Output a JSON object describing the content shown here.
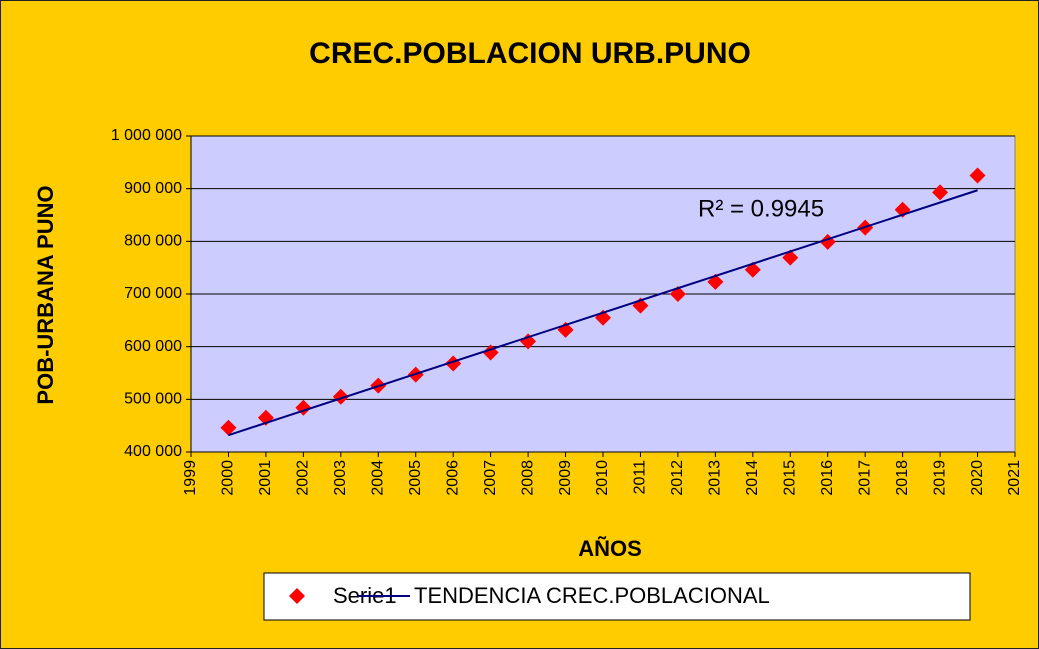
{
  "chart_data": {
    "type": "scatter",
    "title": "CREC.POBLACION URB.PUNO",
    "x_label": "AÑOS",
    "y_label": "POB-URBANA PUNO",
    "annotation": "R² = 0.9945",
    "x": [
      2000,
      2001,
      2002,
      2003,
      2004,
      2005,
      2006,
      2007,
      2008,
      2009,
      2010,
      2011,
      2012,
      2013,
      2014,
      2015,
      2016,
      2017,
      2018,
      2019,
      2020
    ],
    "series": [
      {
        "name": "Serie1",
        "color": "#ff0000",
        "values": [
          446000,
          465000,
          484000,
          505000,
          526000,
          547000,
          568000,
          589000,
          610000,
          632000,
          655000,
          678000,
          700000,
          723000,
          746000,
          769000,
          799000,
          826000,
          860000,
          893000,
          925000
        ]
      },
      {
        "name": "TENDENCIA CREC.POBLACIONAL",
        "color": "#000080",
        "x": [
          2000,
          2020
        ],
        "values": [
          432000,
          897000
        ]
      }
    ],
    "xlim": [
      1999,
      2021
    ],
    "xticks": [
      1999,
      2000,
      2001,
      2002,
      2003,
      2004,
      2005,
      2006,
      2007,
      2008,
      2009,
      2010,
      2011,
      2012,
      2013,
      2014,
      2015,
      2016,
      2017,
      2018,
      2019,
      2020,
      2021
    ],
    "ylim": [
      400000,
      1000000
    ],
    "yticks": [
      {
        "value": 400000,
        "label": "400 000"
      },
      {
        "value": 500000,
        "label": "500 000"
      },
      {
        "value": 600000,
        "label": "600 000"
      },
      {
        "value": 700000,
        "label": "700 000"
      },
      {
        "value": 800000,
        "label": "800 000"
      },
      {
        "value": 900000,
        "label": "900 000"
      },
      {
        "value": 1000000,
        "label": "1 000 000"
      }
    ],
    "grid": true
  }
}
